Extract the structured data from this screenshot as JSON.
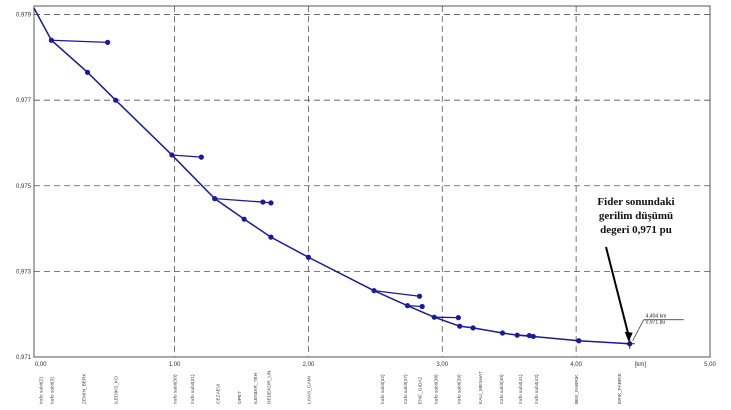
{
  "chart_data": {
    "type": "line",
    "title": "",
    "xlabel": "",
    "ylabel": "",
    "x_unit": "[km]",
    "xlim": [
      -0.05,
      5.0
    ],
    "ylim": [
      0.971,
      0.9792
    ],
    "x_ticks": [
      "0,00",
      "1,00",
      "2,00",
      "3,00",
      "4,00",
      "5,00"
    ],
    "y_ticks": [
      "0,971",
      "0,973",
      "0,975",
      "0,977",
      "0,979"
    ],
    "grid": true,
    "series": [
      {
        "color": "#1a1a9c",
        "x": [
          -0.05,
          0.08,
          0.35,
          0.56,
          0.98,
          1.3,
          1.52,
          1.72,
          2.0,
          2.49,
          2.74,
          2.94,
          3.13,
          3.23,
          3.45,
          3.56,
          3.68,
          4.02,
          4.4
        ],
        "y": [
          0.97915,
          0.9784,
          0.97765,
          0.977,
          0.97572,
          0.9747,
          0.97422,
          0.9738,
          0.97333,
          0.97255,
          0.9722,
          0.97193,
          0.97172,
          0.97168,
          0.97156,
          0.97151,
          0.97148,
          0.97138,
          0.97131
        ]
      }
    ],
    "branches": [
      {
        "x": [
          0.08,
          0.5
        ],
        "y": [
          0.9784,
          0.97835
        ]
      },
      {
        "x": [
          0.98,
          1.2
        ],
        "y": [
          0.97572,
          0.97567
        ]
      },
      {
        "x": [
          1.3,
          1.66,
          1.72
        ],
        "y": [
          0.9747,
          0.97462,
          0.9746
        ]
      },
      {
        "x": [
          2.49,
          2.83
        ],
        "y": [
          0.97255,
          0.97242
        ]
      },
      {
        "x": [
          2.74,
          2.85
        ],
        "y": [
          0.9722,
          0.97218
        ]
      },
      {
        "x": [
          2.94,
          3.12
        ],
        "y": [
          0.97193,
          0.97192
        ]
      },
      {
        "x": [
          3.56,
          3.65
        ],
        "y": [
          0.97151,
          0.9715
        ]
      }
    ],
    "node_labels": [
      {
        "x": 0.0,
        "text": "trafo sabit(2)"
      },
      {
        "x": 0.08,
        "text": "trafo sabit(3)"
      },
      {
        "x": 0.32,
        "text": "ZEMIN_BERK"
      },
      {
        "x": 0.56,
        "text": "ILEDIKS_KO"
      },
      {
        "x": 1.0,
        "text": "trafo sabit(30)"
      },
      {
        "x": 1.13,
        "text": "trafo sabit(31)"
      },
      {
        "x": 1.32,
        "text": "CEZAEVI"
      },
      {
        "x": 1.48,
        "text": "OPET"
      },
      {
        "x": 1.6,
        "text": "ILENDIR_TEH"
      },
      {
        "x": 1.7,
        "text": "DEDEKOR_UN"
      },
      {
        "x": 2.0,
        "text": "LIVAS_CAMI"
      },
      {
        "x": 2.55,
        "text": "trafo sabit(32)"
      },
      {
        "x": 2.72,
        "text": "trafo sabit(37)"
      },
      {
        "x": 2.83,
        "text": "ENC_GIDA2"
      },
      {
        "x": 2.95,
        "text": "trafo sabit(38)"
      },
      {
        "x": 3.12,
        "text": "trafo sabit(39)"
      },
      {
        "x": 3.28,
        "text": "KALI_MESHAT"
      },
      {
        "x": 3.44,
        "text": "trafo sabit(40)"
      },
      {
        "x": 3.58,
        "text": "trafo sabit(41)"
      },
      {
        "x": 3.7,
        "text": "trafo sabit(42)"
      },
      {
        "x": 4.0,
        "text": "BEK_FABRIK"
      },
      {
        "x": 4.32,
        "text": "ERIK_FABRIK"
      }
    ],
    "annotations": {
      "note_lines": [
        "Fider sonundaki",
        "gerilim düşümü",
        "degeri 0,971 pu"
      ],
      "callout_lines": [
        "4,404 km",
        "0,971 pu"
      ]
    }
  }
}
